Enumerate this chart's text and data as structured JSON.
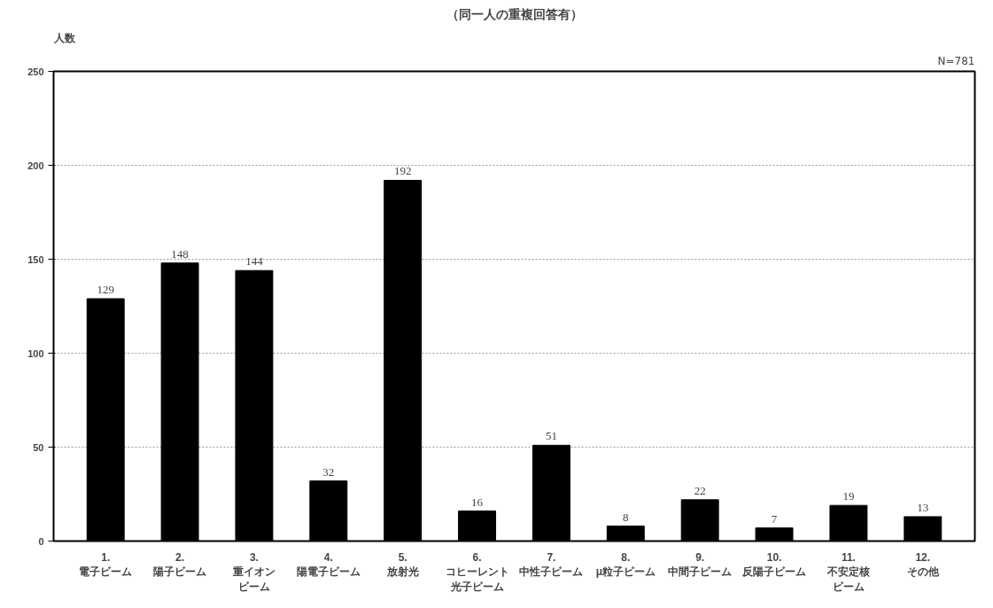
{
  "chart_data": {
    "type": "bar",
    "title": "（同一人の重複回答有）",
    "ylabel": "人数",
    "annotations": [
      "N=781"
    ],
    "categories": [
      "1.\n電子ビーム",
      "2.\n陽子ビーム",
      "3.\n重イオンビーム",
      "4.\n陽電子ビーム",
      "5.\n放射光",
      "6.\nコヒーレント光子ビーム",
      "7.\n中性子ビーム",
      "8.\nμ粒子ビーム",
      "9.\n中間子ビーム",
      "10.\n反陽子ビーム",
      "11.\n不安定核ビーム",
      "12.\nその他"
    ],
    "values": [
      129,
      148,
      144,
      32,
      192,
      16,
      51,
      8,
      22,
      7,
      19,
      13
    ],
    "color": "#000000",
    "data_labels": true,
    "grid": "y",
    "ylim": [
      0,
      250
    ],
    "yticks": [
      0,
      50,
      100,
      150,
      200,
      250
    ]
  }
}
